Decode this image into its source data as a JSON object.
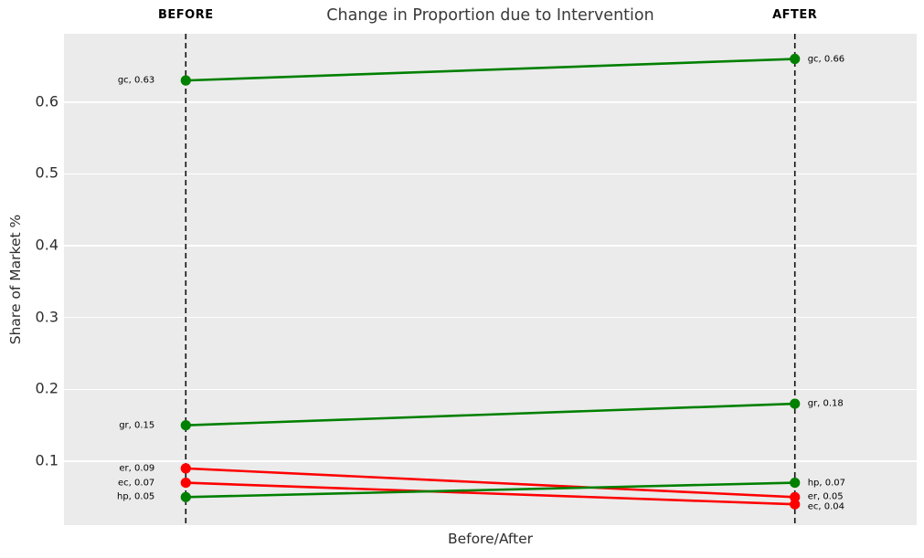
{
  "chart_data": {
    "type": "line",
    "variant": "slope-chart",
    "title": "Change in Proportion due to Intervention",
    "xlabel": "Before/After",
    "ylabel": "Share of Market %",
    "column_headers": {
      "before": "BEFORE",
      "after": "AFTER"
    },
    "categories": [
      "Before",
      "After"
    ],
    "ylim": [
      0.011,
      0.695
    ],
    "grid": "horizontal-white-on-gray",
    "legend": "none",
    "yticks": [
      {
        "value": 0.1,
        "label": "0.1"
      },
      {
        "value": 0.2,
        "label": "0.2"
      },
      {
        "value": 0.3,
        "label": "0.3"
      },
      {
        "value": 0.4,
        "label": "0.4"
      },
      {
        "value": 0.5,
        "label": "0.5"
      },
      {
        "value": 0.6,
        "label": "0.6"
      }
    ],
    "series": [
      {
        "name": "gc",
        "color": "#008000",
        "before": 0.63,
        "after": 0.66,
        "before_label": "gc, 0.63",
        "after_label": "gc, 0.66"
      },
      {
        "name": "gr",
        "color": "#008000",
        "before": 0.15,
        "after": 0.18,
        "before_label": "gr, 0.15",
        "after_label": "gr, 0.18"
      },
      {
        "name": "er",
        "color": "#ff0000",
        "before": 0.09,
        "after": 0.05,
        "before_label": "er, 0.09",
        "after_label": "er, 0.05"
      },
      {
        "name": "ec",
        "color": "#ff0000",
        "before": 0.07,
        "after": 0.04,
        "before_label": "ec, 0.07",
        "after_label": "ec, 0.04"
      },
      {
        "name": "hp",
        "color": "#008000",
        "before": 0.05,
        "after": 0.07,
        "before_label": "hp, 0.05",
        "after_label": "hp, 0.07"
      }
    ],
    "colors": {
      "increase": "#008000",
      "decrease": "#ff0000",
      "plot_background": "#ebebeb",
      "gridline": "#ffffff",
      "dashed_axis_line": "#111111",
      "title_text": "#3a3a3a",
      "tick_text": "#2e2e2e",
      "annotation_text": "#000000"
    }
  }
}
